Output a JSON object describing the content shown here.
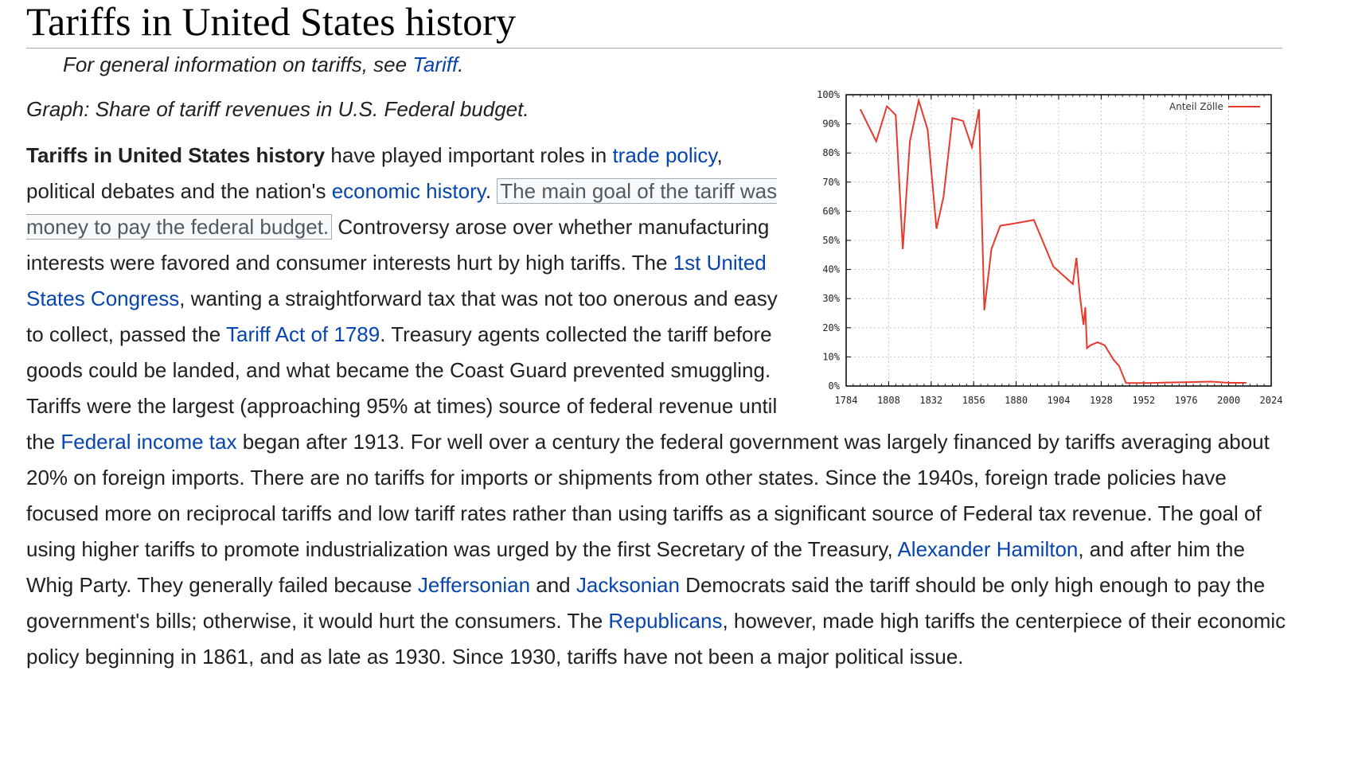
{
  "page": {
    "title": "Tariffs in United States history",
    "hatnote": {
      "prefix": "For general information on tariffs, see ",
      "link": "Tariff",
      "suffix": "."
    },
    "caption": "Graph: Share of tariff revenues in U.S. Federal budget."
  },
  "article": {
    "lead_bold": "Tariffs in United States history",
    "t1": " have played important roles in ",
    "link_trade_policy": "trade policy",
    "t2": ", political debates and the nation's ",
    "link_economic_history": "economic history",
    "t3": ". ",
    "highlight": "The main goal of the tariff was money to pay the federal budget.",
    "t4": " Controversy arose over whether manufacturing interests were favored and consumer interests hurt by high tariffs. The ",
    "link_congress": "1st United States Congress",
    "t5": ", wanting a straightforward tax that was not too onerous and easy to collect, passed the ",
    "link_tariff_act": "Tariff Act of 1789",
    "t6": ". Treasury agents collected the tariff before goods could be landed, and what became the Coast Guard prevented smuggling. Tariffs were the largest (approaching 95% at times) source of federal revenue until the ",
    "link_income_tax": "Federal income tax",
    "t7": " began after 1913. For well over a century the federal government was largely financed by tariffs averaging about 20% on foreign imports. There are no tariffs for imports or shipments from other states. Since the 1940s, foreign trade policies have focused more on reciprocal tariffs and low tariff rates rather than using tariffs as a significant source of Federal tax revenue. The goal of using higher tariffs to promote industrialization was urged by the first Secretary of the Treasury, ",
    "link_hamilton": "Alexander Hamilton",
    "t8": ", and after him the Whig Party. They generally failed because ",
    "link_jeffersonian": "Jeffersonian",
    "t9": " and ",
    "link_jacksonian": "Jacksonian",
    "t10": " Democrats said the tariff should be only high enough to pay the government's bills; otherwise, it would hurt the consumers. The ",
    "link_republicans": "Republicans",
    "t11": ", however, made high tariffs the centerpiece of their economic policy beginning in 1861, and as late as 1930. Since 1930, tariffs have not been a major political issue."
  },
  "colors": {
    "link": "#0645ad",
    "series": "#e8392e"
  },
  "chart_data": {
    "type": "line",
    "title": "",
    "xlabel": "",
    "ylabel": "",
    "xlim": [
      1784,
      2024
    ],
    "ylim": [
      0,
      100
    ],
    "x_ticks": [
      "1784",
      "1808",
      "1832",
      "1856",
      "1880",
      "1904",
      "1928",
      "1952",
      "1976",
      "2000",
      "2024"
    ],
    "y_ticks": [
      "0%",
      "10%",
      "20%",
      "30%",
      "40%",
      "50%",
      "60%",
      "70%",
      "80%",
      "90%",
      "100%"
    ],
    "grid": true,
    "legend_position": "top-right",
    "series": [
      {
        "name": "Anteil Zölle",
        "x": [
          1792,
          1801,
          1807,
          1812,
          1816,
          1820,
          1825,
          1830,
          1835,
          1839,
          1844,
          1850,
          1855,
          1859,
          1862,
          1866,
          1871,
          1881,
          1890,
          1901,
          1912,
          1914,
          1916,
          1918,
          1919,
          1920,
          1922,
          1926,
          1930,
          1935,
          1938,
          1942,
          1946,
          1955,
          1965,
          1975,
          1990,
          2000,
          2010
        ],
        "y": [
          95,
          84,
          96,
          93,
          47,
          84,
          98,
          88,
          54,
          65,
          92,
          91,
          82,
          95,
          26,
          47,
          55,
          56,
          57,
          41,
          35,
          44,
          31,
          21,
          27,
          13,
          14,
          15,
          14,
          9,
          7,
          1,
          1,
          1,
          1.2,
          1.3,
          1.5,
          1.1,
          1.1
        ]
      }
    ]
  }
}
